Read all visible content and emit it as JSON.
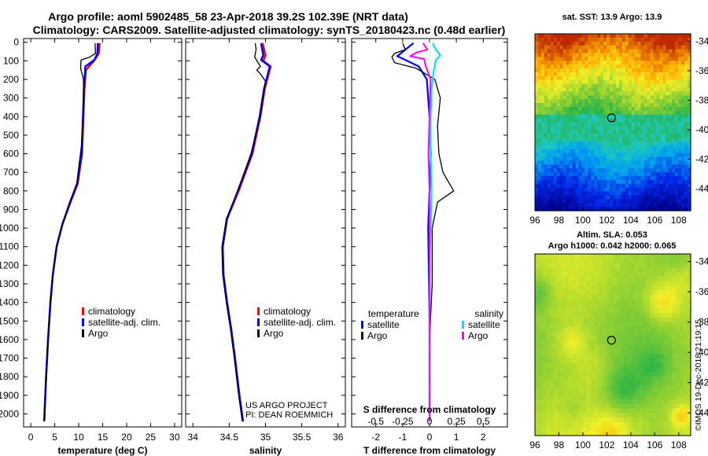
{
  "header": {
    "line1": "Argo profile: aoml 5902485_58 23-Apr-2018 39.2S 102.39E (NRT data)",
    "line2": "Climatology: CARS2009. Satellite-adjusted climatology: synTS_20180423.nc (0.48d earlier)"
  },
  "colors": {
    "climatology": "#ff0000",
    "satellite": "#0000ff",
    "argo": "#000000",
    "sal_satellite": "#00e5ff",
    "sal_argo": "#ff00ff"
  },
  "watermark": {
    "line1": "US ARGO PROJECT",
    "line2": "PI: DEAN ROEMMICH"
  },
  "footer": "©IMOS 19-Dec-2018 21:19:15",
  "chart_data": [
    {
      "type": "line",
      "name": "temperature",
      "xlabel": "temperature (deg C)",
      "ylabel": "depth",
      "xlim": [
        -1.5,
        31.5
      ],
      "ylim": [
        2070,
        -20
      ],
      "xticks": [
        0,
        5,
        10,
        15,
        20,
        25,
        30
      ],
      "yticks": [
        0,
        100,
        200,
        300,
        400,
        500,
        600,
        700,
        800,
        900,
        1000,
        1100,
        1200,
        1300,
        1400,
        1500,
        1600,
        1700,
        1800,
        1900,
        2000
      ],
      "legend": [
        "climatology",
        "satellite-adj. clim.",
        "Argo"
      ],
      "series": [
        {
          "name": "climatology",
          "color": "#ff0000",
          "width": 2.5,
          "points": [
            [
              14.4,
              5
            ],
            [
              14.2,
              60
            ],
            [
              13.2,
              100
            ],
            [
              11.5,
              150
            ],
            [
              11.2,
              250
            ],
            [
              11.0,
              400
            ],
            [
              10.7,
              600
            ],
            [
              9.8,
              760
            ],
            [
              8.3,
              860
            ],
            [
              6.6,
              980
            ],
            [
              5.4,
              1100
            ],
            [
              4.6,
              1250
            ],
            [
              4.1,
              1400
            ],
            [
              3.6,
              1600
            ],
            [
              3.2,
              1800
            ],
            [
              2.8,
              2040
            ]
          ]
        },
        {
          "name": "satellite-adj. clim.",
          "color": "#0000ff",
          "width": 2.5,
          "points": [
            [
              14.0,
              5
            ],
            [
              13.9,
              60
            ],
            [
              13.3,
              95
            ],
            [
              11.4,
              130
            ],
            [
              11.1,
              250
            ],
            [
              10.9,
              400
            ],
            [
              10.6,
              600
            ],
            [
              9.7,
              760
            ],
            [
              8.2,
              860
            ],
            [
              6.6,
              980
            ],
            [
              5.4,
              1100
            ],
            [
              4.6,
              1250
            ],
            [
              4.1,
              1400
            ],
            [
              3.6,
              1600
            ],
            [
              3.2,
              1800
            ],
            [
              2.8,
              2040
            ]
          ]
        },
        {
          "name": "Argo",
          "color": "#000000",
          "width": 1.3,
          "points": [
            [
              13.4,
              5
            ],
            [
              13.5,
              60
            ],
            [
              12.3,
              80
            ],
            [
              10.5,
              95
            ],
            [
              10.4,
              140
            ],
            [
              11.0,
              200
            ],
            [
              11.0,
              350
            ],
            [
              10.6,
              550
            ],
            [
              9.6,
              760
            ],
            [
              8.2,
              860
            ],
            [
              6.6,
              980
            ],
            [
              5.4,
              1100
            ],
            [
              4.6,
              1250
            ],
            [
              4.1,
              1400
            ],
            [
              3.6,
              1600
            ],
            [
              3.2,
              1800
            ],
            [
              2.8,
              2040
            ]
          ]
        }
      ]
    },
    {
      "type": "line",
      "name": "salinity",
      "xlabel": "salinity",
      "xlim": [
        33.9,
        36.1
      ],
      "ylim": [
        2070,
        -20
      ],
      "xticks": [
        34,
        34.5,
        35,
        35.5,
        36
      ],
      "xticklabels": [
        "34",
        "34.5",
        "35",
        "35.5",
        "36"
      ],
      "legend": [
        "climatology",
        "satellite-adj. clim.",
        "Argo"
      ],
      "series": [
        {
          "name": "climatology",
          "color": "#ff0000",
          "width": 2.5,
          "points": [
            [
              34.96,
              5
            ],
            [
              35.0,
              70
            ],
            [
              34.97,
              100
            ],
            [
              35.07,
              130
            ],
            [
              34.99,
              250
            ],
            [
              34.93,
              400
            ],
            [
              34.82,
              600
            ],
            [
              34.63,
              800
            ],
            [
              34.47,
              950
            ],
            [
              34.41,
              1100
            ],
            [
              34.42,
              1250
            ],
            [
              34.47,
              1400
            ],
            [
              34.53,
              1550
            ],
            [
              34.58,
              1700
            ],
            [
              34.64,
              1900
            ],
            [
              34.69,
              2040
            ]
          ]
        },
        {
          "name": "satellite-adj. clim.",
          "color": "#0000ff",
          "width": 2.5,
          "points": [
            [
              34.94,
              5
            ],
            [
              34.97,
              70
            ],
            [
              34.94,
              95
            ],
            [
              35.06,
              130
            ],
            [
              34.98,
              250
            ],
            [
              34.92,
              400
            ],
            [
              34.81,
              600
            ],
            [
              34.62,
              800
            ],
            [
              34.47,
              950
            ],
            [
              34.41,
              1100
            ],
            [
              34.42,
              1250
            ],
            [
              34.47,
              1400
            ],
            [
              34.53,
              1550
            ],
            [
              34.58,
              1700
            ],
            [
              34.64,
              1900
            ],
            [
              34.69,
              2040
            ]
          ]
        },
        {
          "name": "Argo",
          "color": "#000000",
          "width": 1.3,
          "points": [
            [
              34.86,
              5
            ],
            [
              34.87,
              40
            ],
            [
              34.85,
              80
            ],
            [
              34.93,
              130
            ],
            [
              34.88,
              150
            ],
            [
              34.93,
              170
            ],
            [
              35.0,
              210
            ],
            [
              34.93,
              400
            ],
            [
              34.8,
              600
            ],
            [
              34.62,
              800
            ],
            [
              34.46,
              950
            ],
            [
              34.4,
              1100
            ],
            [
              34.41,
              1250
            ],
            [
              34.46,
              1400
            ],
            [
              34.52,
              1550
            ],
            [
              34.57,
              1700
            ],
            [
              34.63,
              1900
            ],
            [
              34.68,
              2040
            ]
          ]
        }
      ]
    },
    {
      "type": "line",
      "name": "difference",
      "xlabel": "T difference from climatology",
      "x2label": "S difference from climatology",
      "xlim": [
        -2.9,
        2.9
      ],
      "ylim": [
        2070,
        -20
      ],
      "xticks": [
        -2,
        -1,
        0,
        1,
        2
      ],
      "x2ticks": [
        -0.5,
        -0.25,
        0,
        0.25,
        0.5
      ],
      "x2ticklabels": [
        "-0.5",
        "-0.25",
        "0",
        "0.25",
        "0.5"
      ],
      "legend_left_title": "temperature",
      "legend_right_title": "salinity",
      "legend_left": [
        "satellite",
        "Argo"
      ],
      "legend_right": [
        "satellite",
        "Argo"
      ],
      "series": [
        {
          "name": "T satellite",
          "color": "#0000ff",
          "width": 2.2,
          "points": [
            [
              -0.6,
              5
            ],
            [
              -0.9,
              40
            ],
            [
              -1.2,
              75
            ],
            [
              -0.9,
              95
            ],
            [
              -0.4,
              130
            ],
            [
              -0.1,
              200
            ],
            [
              0.0,
              400
            ],
            [
              0.05,
              600
            ],
            [
              0.0,
              800
            ],
            [
              -0.05,
              1000
            ],
            [
              0.0,
              1500
            ],
            [
              0.0,
              2040
            ]
          ]
        },
        {
          "name": "T Argo",
          "color": "#000000",
          "width": 1.3,
          "points": [
            [
              -1.0,
              5
            ],
            [
              -0.9,
              40
            ],
            [
              -1.3,
              60
            ],
            [
              -1.4,
              80
            ],
            [
              -1.3,
              110
            ],
            [
              -0.5,
              140
            ],
            [
              0.2,
              200
            ],
            [
              0.4,
              300
            ],
            [
              0.3,
              450
            ],
            [
              0.35,
              600
            ],
            [
              0.5,
              700
            ],
            [
              0.9,
              800
            ],
            [
              0.3,
              860
            ],
            [
              0.1,
              1000
            ],
            [
              0.1,
              1300
            ],
            [
              0.0,
              1600
            ],
            [
              0.0,
              2040
            ]
          ]
        },
        {
          "name": "S satellite",
          "color": "#00e5ff",
          "width": 2.2,
          "points": [
            [
              0.03,
              5
            ],
            [
              0.06,
              40
            ],
            [
              0.1,
              70
            ],
            [
              0.06,
              95
            ],
            [
              0.04,
              150
            ],
            [
              0.02,
              250
            ],
            [
              0.01,
              400
            ],
            [
              0.01,
              600
            ],
            [
              0.02,
              800
            ],
            [
              0.0,
              1200
            ],
            [
              0.0,
              2040
            ]
          ]
        },
        {
          "name": "S Argo",
          "color": "#ff00ff",
          "width": 2.0,
          "points": [
            [
              -0.06,
              5
            ],
            [
              -0.02,
              40
            ],
            [
              -0.12,
              55
            ],
            [
              -0.18,
              75
            ],
            [
              -0.05,
              90
            ],
            [
              -0.04,
              120
            ],
            [
              0.01,
              200
            ],
            [
              0.0,
              400
            ],
            [
              -0.01,
              600
            ],
            [
              0.0,
              800
            ],
            [
              0.0,
              1200
            ],
            [
              0.0,
              2040
            ]
          ]
        }
      ]
    },
    {
      "type": "heatmap",
      "name": "sst_map",
      "title": "sat. SST: 13.9 Argo: 13.9",
      "xlim": [
        96,
        109
      ],
      "ylim": [
        -45.5,
        -33.5
      ],
      "xticks": [
        96,
        98,
        100,
        102,
        104,
        106,
        108
      ],
      "yticks": [
        -34,
        -36,
        -38,
        -40,
        -42,
        -44
      ],
      "argo_position": [
        102.39,
        -39.2
      ]
    },
    {
      "type": "heatmap",
      "name": "sla_map",
      "title1": "Altim. SLA: 0.053",
      "title2": "Argo h1000: 0.042 h2000: 0.065",
      "xlim": [
        96,
        109
      ],
      "ylim": [
        -45.5,
        -33.5
      ],
      "xticks": [
        96,
        98,
        100,
        102,
        104,
        106,
        108
      ],
      "yticks": [
        -34,
        -36,
        -38,
        -40,
        -42,
        -44
      ],
      "argo_position": [
        102.39,
        -39.2
      ]
    }
  ]
}
